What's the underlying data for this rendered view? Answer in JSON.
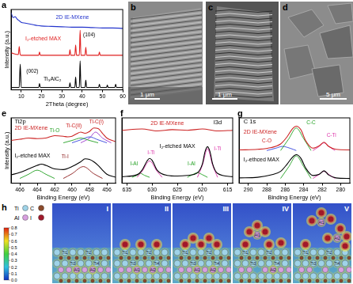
{
  "chart_data": [
    {
      "panel": "a",
      "type": "line",
      "x_label": "2Theta (degree)",
      "y_label": "Intensity (a.u.)",
      "xlim": [
        5,
        60
      ],
      "xticks": [
        10,
        20,
        30,
        40,
        50,
        60
      ],
      "ylim": [
        0,
        10
      ],
      "yticks": [],
      "tick_labels": "x",
      "grid": false,
      "series": [
        {
          "name": "2D IE-MXene",
          "color": "#2233cc",
          "x": [
            5,
            6,
            7,
            8,
            9,
            10,
            12,
            14,
            16,
            18,
            20,
            25,
            30,
            35,
            40,
            45,
            50,
            55,
            60
          ],
          "values": [
            9.6,
            9.0,
            9.1,
            8.8,
            8.6,
            8.4,
            8.3,
            8.2,
            8.1,
            8.0,
            7.95,
            7.9,
            7.85,
            7.8,
            7.8,
            7.75,
            7.7,
            7.7,
            7.65
          ]
        },
        {
          "name": "I₂-etched MAX",
          "color": "#e02020",
          "x": [
            5,
            8.6,
            9.0,
            9.4,
            9.8,
            18.6,
            19.0,
            19.4,
            33.6,
            34.0,
            34.4,
            36.4,
            36.8,
            37.2,
            38.6,
            39.0,
            39.4,
            41.4,
            41.8,
            42.2,
            48.1,
            48.5,
            48.9,
            60
          ],
          "values": [
            4.6,
            4.4,
            5.4,
            4.5,
            4.3,
            4.3,
            4.7,
            4.3,
            4.3,
            5.0,
            4.3,
            4.3,
            5.6,
            4.3,
            4.3,
            7.4,
            4.3,
            4.3,
            5.3,
            4.3,
            4.3,
            4.7,
            4.3,
            4.3
          ]
        },
        {
          "name": "Ti₃AlC₂",
          "color": "#000000",
          "x": [
            5,
            9.0,
            9.5,
            10.0,
            18.6,
            19.0,
            19.4,
            33.6,
            34.0,
            34.4,
            36.4,
            36.8,
            37.2,
            38.6,
            39.0,
            39.4,
            41.4,
            41.8,
            42.2,
            48.1,
            48.5,
            48.9,
            52.0,
            52.4,
            52.8,
            56.1,
            56.5,
            56.9,
            60
          ],
          "values": [
            0.3,
            0.3,
            3.2,
            0.3,
            0.3,
            0.8,
            0.3,
            0.3,
            0.9,
            0.3,
            0.3,
            1.6,
            0.3,
            0.3,
            3.6,
            0.3,
            0.3,
            1.2,
            0.3,
            0.3,
            0.7,
            0.3,
            0.3,
            0.6,
            0.3,
            0.3,
            0.7,
            0.3,
            0.3
          ]
        }
      ],
      "annotations": [
        {
          "text": "(002)",
          "color": "#000000"
        },
        {
          "text": "(104)",
          "color": "#000000"
        }
      ]
    },
    {
      "panel": "e",
      "type": "line",
      "title": "Ti2p",
      "x_label": "Binding Energy (eV)",
      "y_label": "Intensity (a.u.)",
      "xlim": [
        467,
        455
      ],
      "xticks": [
        466,
        464,
        462,
        460,
        458,
        456
      ],
      "ylim": [
        0,
        11
      ],
      "yticks": [],
      "tick_labels": "x",
      "grid": false,
      "series": [
        {
          "name": "2D IE-MXene",
          "color": "#cc2222",
          "x": [
            467,
            466,
            465,
            464,
            463,
            462,
            461,
            460.5,
            460,
            459.5,
            459,
            458.5,
            458,
            457.5,
            457,
            456.5,
            456,
            455
          ],
          "values": [
            7.2,
            7.4,
            7.6,
            7.5,
            7.6,
            8.0,
            7.9,
            7.8,
            7.9,
            8.3,
            8.6,
            8.4,
            8.7,
            9.3,
            9.2,
            8.4,
            7.6,
            7.0
          ]
        },
        {
          "color": "#22a022",
          "x": [
            461,
            460,
            459,
            458,
            457
          ],
          "values": [
            6.8,
            7.2,
            7.6,
            7.2,
            6.8
          ]
        },
        {
          "color": "#3344dd",
          "x": [
            460,
            459,
            458,
            457,
            456
          ],
          "values": [
            6.8,
            7.3,
            7.8,
            7.3,
            6.8
          ]
        },
        {
          "color": "#9933cc",
          "x": [
            459,
            458,
            457.3,
            456.5,
            455.5
          ],
          "values": [
            6.8,
            7.6,
            8.6,
            7.6,
            6.8
          ]
        },
        {
          "name": "I₂-etched MAX",
          "color": "#000000",
          "x": [
            467,
            466,
            465,
            464,
            463.5,
            463,
            462,
            461,
            460,
            459,
            458.5,
            458,
            457.5,
            457,
            456.5,
            456,
            455
          ],
          "values": [
            1.4,
            1.8,
            2.4,
            3.0,
            3.2,
            3.0,
            2.4,
            2.3,
            2.8,
            3.6,
            4.1,
            4.0,
            3.6,
            3.0,
            2.2,
            1.5,
            1.0
          ]
        },
        {
          "color": "#8b1a1a",
          "x": [
            461,
            460,
            458.7,
            457.5,
            456.5
          ],
          "values": [
            0.8,
            1.6,
            2.8,
            1.6,
            0.8
          ]
        },
        {
          "color": "#22a022",
          "x": [
            466,
            465,
            464,
            463,
            462
          ],
          "values": [
            0.8,
            1.5,
            2.2,
            1.5,
            0.8
          ]
        }
      ],
      "annotations": [
        {
          "text": "Ti-O",
          "color": "#22a022"
        },
        {
          "text": "Ti-C(II)",
          "color": "#cc2222"
        },
        {
          "text": "Ti-C(I)",
          "color": "#cc2222"
        },
        {
          "text": "Ti-I",
          "color": "#8b1a1a"
        }
      ]
    },
    {
      "panel": "f",
      "type": "line",
      "title": "I3d",
      "x_label": "Binding Energy (eV)",
      "xlim": [
        636,
        614
      ],
      "xticks": [
        635,
        630,
        625,
        620,
        615
      ],
      "ylim": [
        0,
        10
      ],
      "yticks": [],
      "tick_labels": "x",
      "grid": false,
      "series": [
        {
          "name": "2D IE-MXene",
          "color": "#cc2222",
          "x": [
            636,
            632,
            629,
            626,
            623,
            620,
            617,
            614
          ],
          "values": [
            8.1,
            8.3,
            8.0,
            8.2,
            8.1,
            8.3,
            8.0,
            8.1
          ]
        },
        {
          "name": "I₂-etched MAX",
          "color": "#000000",
          "x": [
            636,
            633,
            632,
            631,
            630.5,
            630,
            629,
            627,
            625,
            623,
            621,
            620,
            619.5,
            619,
            618.5,
            618,
            617,
            614
          ],
          "values": [
            1.0,
            1.3,
            2.0,
            3.4,
            3.8,
            3.5,
            2.0,
            1.2,
            1.1,
            1.2,
            1.6,
            3.0,
            4.8,
            5.6,
            4.8,
            3.0,
            1.5,
            1.0
          ]
        },
        {
          "color": "#dd33aa",
          "x": [
            621,
            620,
            619,
            618,
            617
          ],
          "values": [
            0.9,
            2.8,
            5.3,
            2.8,
            0.9
          ]
        },
        {
          "color": "#dd33aa",
          "x": [
            633,
            632,
            630.5,
            629,
            628
          ],
          "values": [
            0.9,
            1.8,
            3.4,
            1.8,
            0.9
          ]
        },
        {
          "color": "#22a022",
          "x": [
            623,
            622,
            621,
            620,
            619
          ],
          "values": [
            0.9,
            1.3,
            1.6,
            1.3,
            0.9
          ]
        },
        {
          "color": "#22a022",
          "x": [
            634,
            633,
            632.3,
            631.5,
            630.5
          ],
          "values": [
            0.9,
            1.2,
            1.5,
            1.2,
            0.9
          ]
        }
      ],
      "annotations": [
        {
          "text": "I-Ti",
          "color": "#dd33aa"
        },
        {
          "text": "I-Al",
          "color": "#22a022"
        },
        {
          "text": "I-Ti",
          "color": "#dd33aa"
        },
        {
          "text": "I-Al",
          "color": "#22a022"
        }
      ]
    },
    {
      "panel": "g",
      "type": "line",
      "title": "C 1s",
      "x_label": "Binding Energy (eV)",
      "xlim": [
        291,
        279
      ],
      "xticks": [
        290,
        288,
        286,
        284,
        282,
        280
      ],
      "ylim": [
        0,
        11
      ],
      "yticks": [],
      "tick_labels": "x",
      "grid": false,
      "series": [
        {
          "name": "2D IE-MXene",
          "color": "#cc2222",
          "x": [
            291,
            289,
            287.5,
            286.5,
            285.8,
            285.2,
            284.8,
            284.3,
            283.8,
            283,
            282.3,
            281.8,
            281.3,
            280.5,
            279
          ],
          "values": [
            5.6,
            5.7,
            6.0,
            6.6,
            7.8,
            9.2,
            9.6,
            9.0,
            7.2,
            5.9,
            6.3,
            6.9,
            6.2,
            5.7,
            5.6
          ]
        },
        {
          "color": "#22a022",
          "x": [
            286.5,
            285.6,
            284.8,
            284,
            283.2
          ],
          "values": [
            5.5,
            7.5,
            9.3,
            7.5,
            5.5
          ]
        },
        {
          "color": "#3344dd",
          "x": [
            288,
            287,
            286.3,
            285.5,
            284.8
          ],
          "values": [
            5.5,
            5.9,
            6.2,
            5.9,
            5.5
          ]
        },
        {
          "color": "#dd33aa",
          "x": [
            283,
            282.4,
            281.8,
            281.2,
            280.6
          ],
          "values": [
            5.5,
            6.1,
            6.8,
            6.1,
            5.5
          ]
        },
        {
          "name": "I₂-ethced MAX",
          "color": "#000000",
          "x": [
            291,
            289,
            287.5,
            286.5,
            285.8,
            285.2,
            284.8,
            284.3,
            283.8,
            283,
            282.3,
            281.8,
            281.3,
            280.5,
            279
          ],
          "values": [
            0.9,
            1.0,
            1.4,
            2.0,
            3.2,
            4.4,
            4.8,
            4.2,
            2.6,
            1.3,
            1.5,
            2.1,
            1.4,
            0.9,
            0.8
          ]
        },
        {
          "color": "#22a022",
          "x": [
            286.5,
            285.6,
            284.8,
            284,
            283.2
          ],
          "values": [
            0.8,
            2.8,
            4.6,
            2.8,
            0.8
          ]
        },
        {
          "color": "#dd33aa",
          "x": [
            283,
            282.4,
            281.8,
            281.2,
            280.6
          ],
          "values": [
            0.8,
            1.4,
            2.0,
            1.4,
            0.8
          ]
        }
      ],
      "annotations": [
        {
          "text": "C-C",
          "color": "#22a022"
        },
        {
          "text": "C-O",
          "color": "#cc2222"
        },
        {
          "text": "C-Ti",
          "color": "#dd33aa"
        }
      ]
    }
  ],
  "images": {
    "b": {
      "panel": "b",
      "scale_bar": "1 μm"
    },
    "c": {
      "panel": "c",
      "scale_bar": "1 μm"
    },
    "d": {
      "panel": "d",
      "scale_bar": "5 μm"
    },
    "h": {
      "panel": "h",
      "elements": [
        "Ti",
        "C",
        "Al",
        "I"
      ],
      "colorbar_lim": [
        0,
        0.8
      ],
      "colorbar_ticks": [
        {
          "value": 0,
          "label": "0.0"
        },
        0.1,
        0.2,
        0.3,
        0.4,
        0.5,
        0.6,
        0.7,
        0.8
      ],
      "snapshots": [
        {
          "label": "I",
          "atom_labels": [
            "Ti1",
            "Ti2",
            "Ti3",
            "Ti4",
            "Al1",
            "Al2"
          ]
        },
        {
          "label": "II",
          "atom_labels": [
            "Ti1",
            "Ti2",
            "Ti3",
            "Ti4",
            "Al1",
            "Al2"
          ]
        },
        {
          "label": "III",
          "atom_labels": [
            "Ti1",
            "Ti2",
            "Ti3",
            "Ti4",
            "Al1",
            "Al2"
          ]
        },
        {
          "label": "IV",
          "atom_labels": [
            "Ti1",
            "Ti2",
            "Ti3",
            "Ti4",
            "Al1",
            "Al2"
          ]
        },
        {
          "label": "V",
          "atom_labels": [
            "Ti1",
            "Ti2",
            "Ti3",
            "Ti4",
            "Al1",
            "Al2"
          ]
        }
      ]
    }
  }
}
